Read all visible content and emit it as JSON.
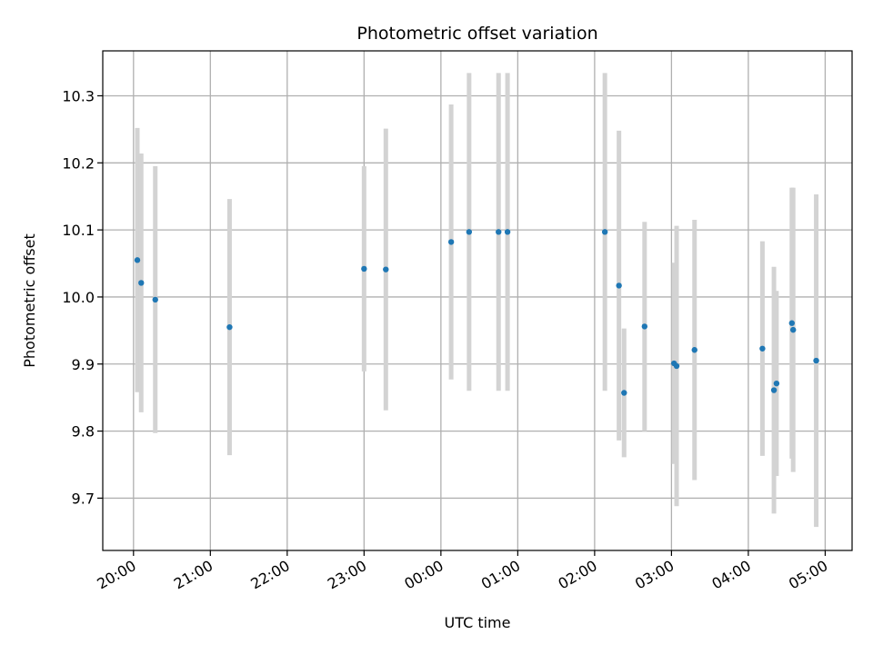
{
  "chart_data": {
    "type": "scatter",
    "title": "Photometric offset variation",
    "xlabel": "UTC time",
    "ylabel": "Photometric offset",
    "xlim": [
      "19:36",
      "05:21"
    ],
    "ylim": [
      9.622,
      10.367
    ],
    "x_ticks": [
      "20:00",
      "21:00",
      "22:00",
      "23:00",
      "00:00",
      "01:00",
      "02:00",
      "03:00",
      "04:00",
      "05:00"
    ],
    "y_ticks": [
      "9.7",
      "9.8",
      "9.9",
      "10.0",
      "10.1",
      "10.2",
      "10.3"
    ],
    "grid": true,
    "point_color": "#1f77b4",
    "errorbar_color": "#d3d3d3",
    "points": [
      {
        "x": "20:03",
        "y": 10.055,
        "err": 0.197
      },
      {
        "x": "20:06",
        "y": 10.021,
        "err": 0.193
      },
      {
        "x": "20:17",
        "y": 9.996,
        "err": 0.199
      },
      {
        "x": "21:15",
        "y": 9.955,
        "err": 0.191
      },
      {
        "x": "23:00",
        "y": 10.042,
        "err": 0.153
      },
      {
        "x": "23:17",
        "y": 10.041,
        "err": 0.21
      },
      {
        "x": "00:08",
        "y": 10.082,
        "err": 0.205
      },
      {
        "x": "00:22",
        "y": 10.097,
        "err": 0.237
      },
      {
        "x": "00:45",
        "y": 10.097,
        "err": 0.237
      },
      {
        "x": "00:52",
        "y": 10.097,
        "err": 0.237
      },
      {
        "x": "02:08",
        "y": 10.097,
        "err": 0.237
      },
      {
        "x": "02:19",
        "y": 10.017,
        "err": 0.231
      },
      {
        "x": "02:23",
        "y": 9.857,
        "err": 0.096
      },
      {
        "x": "02:39",
        "y": 9.956,
        "err": 0.156
      },
      {
        "x": "03:02",
        "y": 9.901,
        "err": 0.15
      },
      {
        "x": "03:04",
        "y": 9.897,
        "err": 0.209
      },
      {
        "x": "03:18",
        "y": 9.921,
        "err": 0.194
      },
      {
        "x": "04:11",
        "y": 9.923,
        "err": 0.16
      },
      {
        "x": "04:20",
        "y": 9.861,
        "err": 0.184
      },
      {
        "x": "04:22",
        "y": 9.871,
        "err": 0.138
      },
      {
        "x": "04:34",
        "y": 9.961,
        "err": 0.202
      },
      {
        "x": "04:35",
        "y": 9.951,
        "err": 0.212
      },
      {
        "x": "04:53",
        "y": 9.905,
        "err": 0.248
      }
    ]
  }
}
